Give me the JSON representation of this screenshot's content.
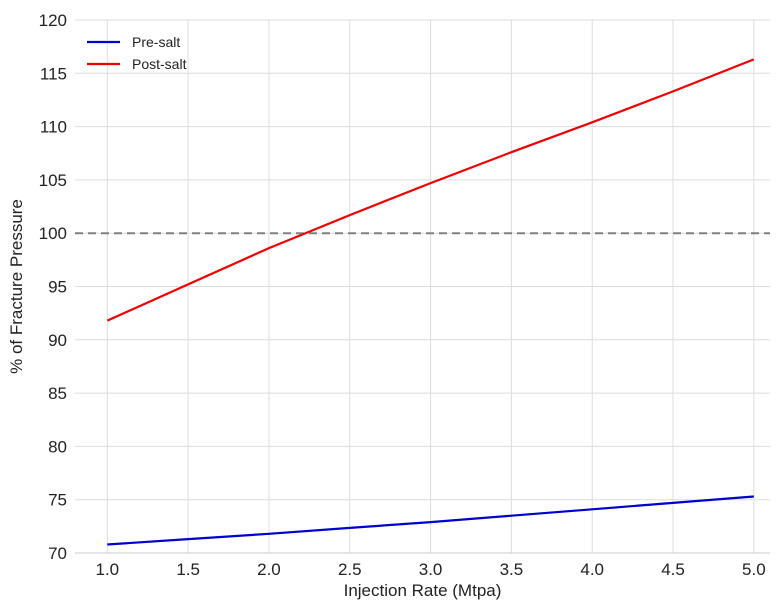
{
  "chart_data": {
    "type": "line",
    "title": "",
    "xlabel": "Injection Rate (Mtpa)",
    "ylabel": "% of Fracture Pressure",
    "xlim": [
      0.8,
      5.1
    ],
    "ylim": [
      70,
      120
    ],
    "x_ticks": [
      1.0,
      1.5,
      2.0,
      2.5,
      3.0,
      3.5,
      4.0,
      4.5,
      5.0
    ],
    "x_tick_labels": [
      "1.0",
      "1.5",
      "2.0",
      "2.5",
      "3.0",
      "3.5",
      "4.0",
      "4.5",
      "5.0"
    ],
    "y_ticks": [
      70,
      75,
      80,
      85,
      90,
      95,
      100,
      105,
      110,
      115,
      120
    ],
    "y_tick_labels": [
      "70",
      "75",
      "80",
      "85",
      "90",
      "95",
      "100",
      "105",
      "110",
      "115",
      "120"
    ],
    "grid": true,
    "legend_position": "top-left",
    "reference_line": {
      "y": 100,
      "style": "dashed",
      "color": "#808080"
    },
    "series": [
      {
        "name": "Pre-salt",
        "color": "#0000cc",
        "x": [
          1.0,
          1.5,
          2.0,
          2.5,
          3.0,
          3.5,
          4.0,
          4.5,
          5.0
        ],
        "y": [
          70.8,
          71.3,
          71.8,
          72.35,
          72.9,
          73.5,
          74.1,
          74.7,
          75.3
        ]
      },
      {
        "name": "Post-salt",
        "color": "#ee0000",
        "x": [
          1.0,
          1.5,
          2.0,
          2.5,
          3.0,
          3.5,
          4.0,
          4.5,
          5.0
        ],
        "y": [
          91.8,
          95.2,
          98.6,
          101.7,
          104.7,
          107.6,
          110.4,
          113.3,
          116.3
        ]
      }
    ]
  }
}
